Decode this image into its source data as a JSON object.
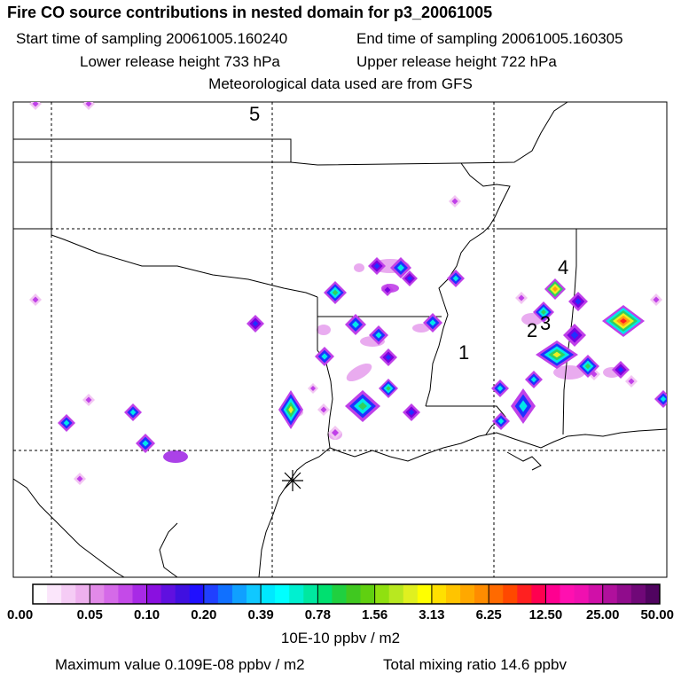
{
  "header": {
    "title": "Fire CO source contributions in nested domain for p3_20061005",
    "start_label": "Start time of sampling 20061005.160240",
    "end_label": "End time of sampling 20061005.160305",
    "lower_label": "Lower release height  733 hPa",
    "upper_label": "Upper release height  722 hPa",
    "met_label": "Meteorological data used are from GFS"
  },
  "map": {
    "markers": [
      {
        "label": "5"
      },
      {
        "label": "4"
      },
      {
        "label": "3"
      },
      {
        "label": "2"
      },
      {
        "label": "1"
      }
    ],
    "colors": {
      "pink_light": "#f2c6f2",
      "magenta": "#c040e8",
      "purple": "#7b00e0",
      "blue": "#2030ff",
      "cyan": "#00e8e8",
      "green": "#30d060",
      "yellow": "#f0f020",
      "orange": "#ffa010",
      "red": "#ff2020"
    }
  },
  "colorbar": {
    "tick_labels": [
      "0.00",
      "0.05",
      "0.10",
      "0.20",
      "0.39",
      "0.78",
      "1.56",
      "3.13",
      "6.25",
      "12.50",
      "25.00",
      "50.00"
    ],
    "colors": [
      "#ffffff",
      "#fbe6fb",
      "#f5ccf5",
      "#eeb0ee",
      "#e28ae8",
      "#d56ae8",
      "#c44ae8",
      "#a82ae6",
      "#8a10e0",
      "#6010e0",
      "#4010e0",
      "#2010ff",
      "#2040ff",
      "#1070ff",
      "#10a0ff",
      "#10c8ff",
      "#00e8ff",
      "#00ffff",
      "#00f0d0",
      "#00e8a0",
      "#00e070",
      "#20d040",
      "#40c820",
      "#60d010",
      "#90e010",
      "#b8e820",
      "#e0f020",
      "#ffff00",
      "#ffe000",
      "#ffc400",
      "#ffa800",
      "#ff8c00",
      "#ff6a00",
      "#ff4800",
      "#ff2020",
      "#ff0050",
      "#ff0090",
      "#ff10b0",
      "#f010b0",
      "#d010a8",
      "#b0109c",
      "#900c8c",
      "#700878",
      "#500460"
    ],
    "unit_label": "10E-10 ppbv / m2"
  },
  "footer": {
    "max_label": "Maximum value  0.109E-08 ppbv / m2",
    "total_label": "Total mixing ratio       14.6 ppbv"
  }
}
